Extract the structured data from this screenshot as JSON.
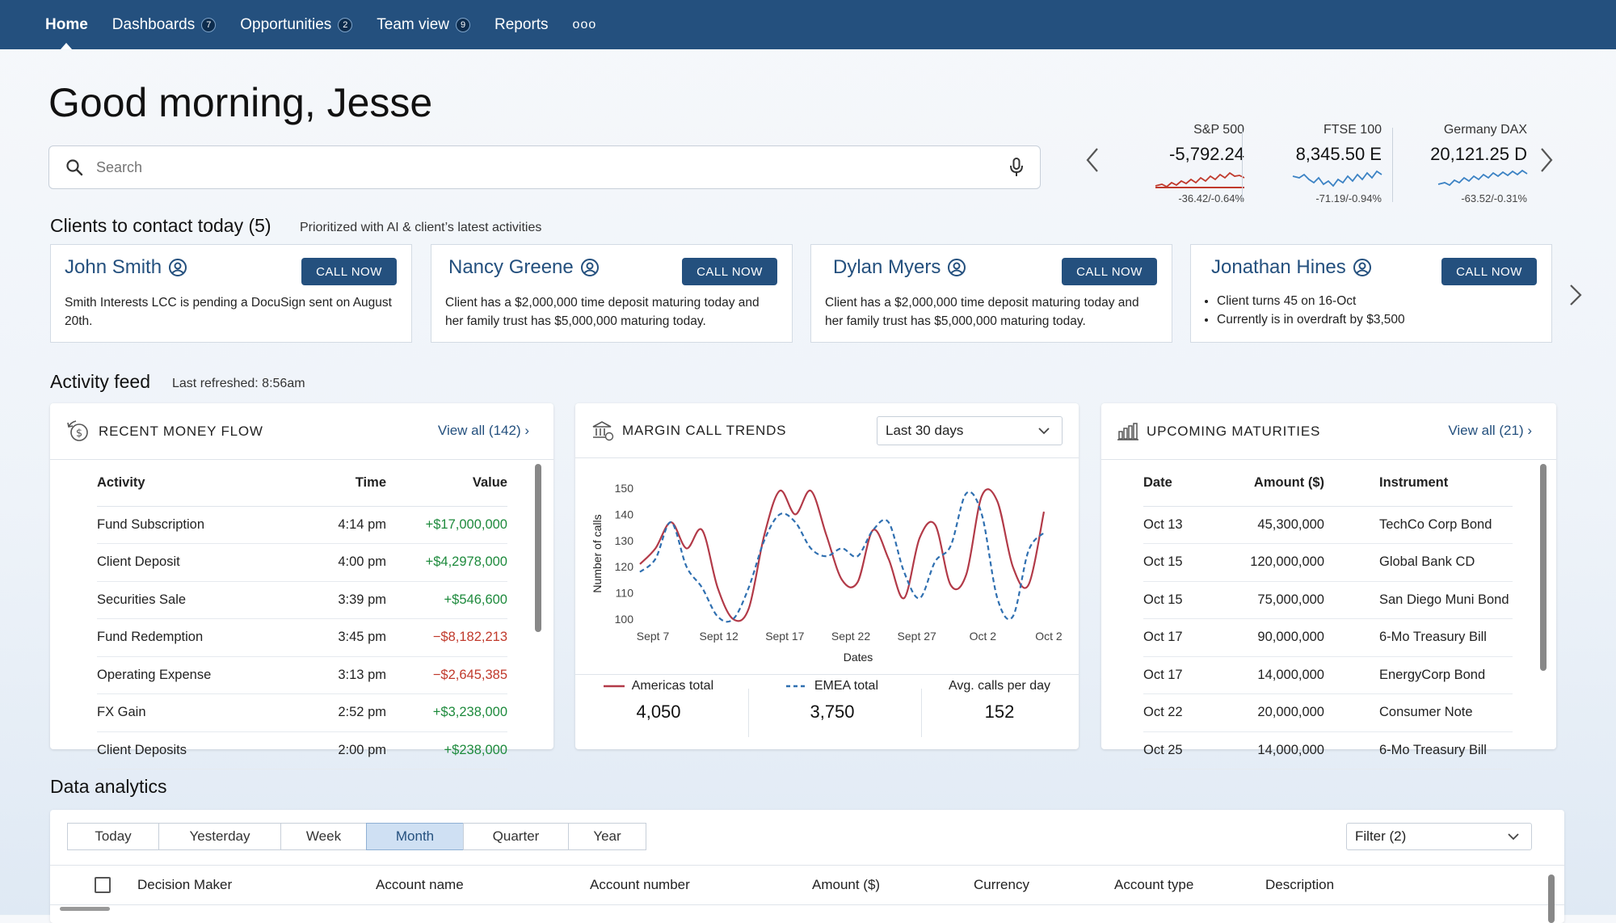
{
  "nav": {
    "items": [
      {
        "label": "Home",
        "badge": null
      },
      {
        "label": "Dashboards",
        "badge": "7"
      },
      {
        "label": "Opportunities",
        "badge": "2"
      },
      {
        "label": "Team view",
        "badge": "9"
      },
      {
        "label": "Reports",
        "badge": null
      }
    ],
    "more": "ooo"
  },
  "greeting": "Good morning, Jesse",
  "search": {
    "placeholder": "Search"
  },
  "tickers": [
    {
      "name": "S&P 500",
      "value": "-5,792.24",
      "change": "-36.42/-0.64%",
      "color": "#c0392b"
    },
    {
      "name": "FTSE 100",
      "value": "8,345.50 E",
      "change": "-71.19/-0.94%",
      "color": "#3b82c4"
    },
    {
      "name": "Germany DAX",
      "value": "20,121.25 D",
      "change": "-63.52/-0.31%",
      "color": "#3b82c4"
    }
  ],
  "clients": {
    "title": "Clients to contact today (5)",
    "subtitle": "Prioritized with AI & client’s latest activities",
    "call_label": "CALL NOW",
    "cards": [
      {
        "name": "John Smith",
        "desc": "Smith Interests LCC is pending a DocuSign sent on August 20th."
      },
      {
        "name": "Nancy Greene",
        "desc": "Client has a $2,000,000 time deposit maturing today and her family trust has $5,000,000 maturing today."
      },
      {
        "name": "Dylan Myers",
        "desc": "Client has a $2,000,000 time deposit maturing today and her family trust has $5,000,000 maturing today."
      },
      {
        "name": "Jonathan Hines",
        "bullets": [
          "Client turns 45 on 16-Oct",
          "Currently is in overdraft by $3,500"
        ]
      }
    ]
  },
  "activity": {
    "title": "Activity feed",
    "refreshed": "Last refreshed: 8:56am",
    "money_flow": {
      "title": "RECENT MONEY FLOW",
      "link": "View all (142)",
      "columns": [
        "Activity",
        "Time",
        "Value"
      ],
      "rows": [
        {
          "activity": "Fund Subscription",
          "time": "4:14 pm",
          "value": "+$17,000,000",
          "sign": "pos"
        },
        {
          "activity": "Client Deposit",
          "time": "4:00 pm",
          "value": "+$4,2978,000",
          "sign": "pos"
        },
        {
          "activity": "Securities Sale",
          "time": "3:39 pm",
          "value": "+$546,600",
          "sign": "pos"
        },
        {
          "activity": "Fund Redemption",
          "time": "3:45 pm",
          "value": "−$8,182,213",
          "sign": "neg"
        },
        {
          "activity": "Operating Expense",
          "time": "3:13 pm",
          "value": "−$2,645,385",
          "sign": "neg"
        },
        {
          "activity": "FX Gain",
          "time": "2:52 pm",
          "value": "+$3,238,000",
          "sign": "pos"
        },
        {
          "activity": "Client Deposits",
          "time": "2:00 pm",
          "value": "+$238,000",
          "sign": "pos"
        }
      ]
    },
    "margin": {
      "title": "MARGIN CALL TRENDS",
      "range": "Last 30 days",
      "legend": [
        {
          "label": "Americas total",
          "value": "4,050"
        },
        {
          "label": "EMEA total",
          "value": "3,750"
        },
        {
          "label": "Avg. calls per day",
          "value": "152"
        }
      ]
    },
    "maturities": {
      "title": "UPCOMING MATURITIES",
      "link": "View all (21)",
      "columns": [
        "Date",
        "Amount ($)",
        "Instrument"
      ],
      "rows": [
        {
          "date": "Oct 13",
          "amount": "45,300,000",
          "instrument": "TechCo Corp Bond"
        },
        {
          "date": "Oct 15",
          "amount": "120,000,000",
          "instrument": "Global Bank CD"
        },
        {
          "date": "Oct 15",
          "amount": "75,000,000",
          "instrument": "San Diego Muni Bond"
        },
        {
          "date": "Oct 17",
          "amount": "90,000,000",
          "instrument": "6-Mo Treasury Bill"
        },
        {
          "date": "Oct 17",
          "amount": "14,000,000",
          "instrument": "EnergyCorp Bond"
        },
        {
          "date": "Oct 22",
          "amount": "20,000,000",
          "instrument": "Consumer Note"
        },
        {
          "date": "Oct 25",
          "amount": "14,000,000",
          "instrument": "6-Mo Treasury Bill"
        }
      ]
    }
  },
  "analytics": {
    "title": "Data analytics",
    "periods": [
      "Today",
      "Yesterday",
      "Week",
      "Month",
      "Quarter",
      "Year"
    ],
    "selected_period": "Month",
    "filter": "Filter (2)",
    "columns": [
      "Decision Maker",
      "Account name",
      "Account number",
      "Amount ($)",
      "Currency",
      "Account type",
      "Description"
    ]
  },
  "chart_data": {
    "type": "line",
    "title": "",
    "xlabel": "Dates",
    "ylabel": "Number of calls",
    "ylim": [
      100,
      150
    ],
    "yticks": [
      100,
      110,
      120,
      130,
      140,
      150
    ],
    "xticks": [
      "Sept 7",
      "Sept 12",
      "Sept 17",
      "Sept 22",
      "Sept 27",
      "Oct 2",
      "Oct 2"
    ],
    "x": [
      0,
      1,
      2,
      3,
      4,
      5,
      6,
      7,
      8,
      9,
      10,
      11,
      12,
      13,
      14,
      15,
      16,
      17,
      18,
      19,
      20,
      21,
      22,
      23,
      24,
      25,
      26
    ],
    "series": [
      {
        "name": "Americas total",
        "color": "#b23a48",
        "dash": false,
        "values": [
          121,
          127,
          137,
          127,
          134,
          112,
          100,
          104,
          132,
          149,
          140,
          149,
          132,
          115,
          114,
          134,
          123,
          108,
          131,
          136,
          113,
          117,
          147,
          145,
          120,
          113,
          141
        ]
      },
      {
        "name": "EMEA total",
        "color": "#2f6fb0",
        "dash": true,
        "values": [
          118,
          123,
          137,
          120,
          112,
          101,
          100,
          112,
          130,
          140,
          137,
          127,
          124,
          127,
          124,
          134,
          137,
          118,
          108,
          122,
          128,
          148,
          140,
          108,
          101,
          126,
          133
        ]
      }
    ]
  }
}
